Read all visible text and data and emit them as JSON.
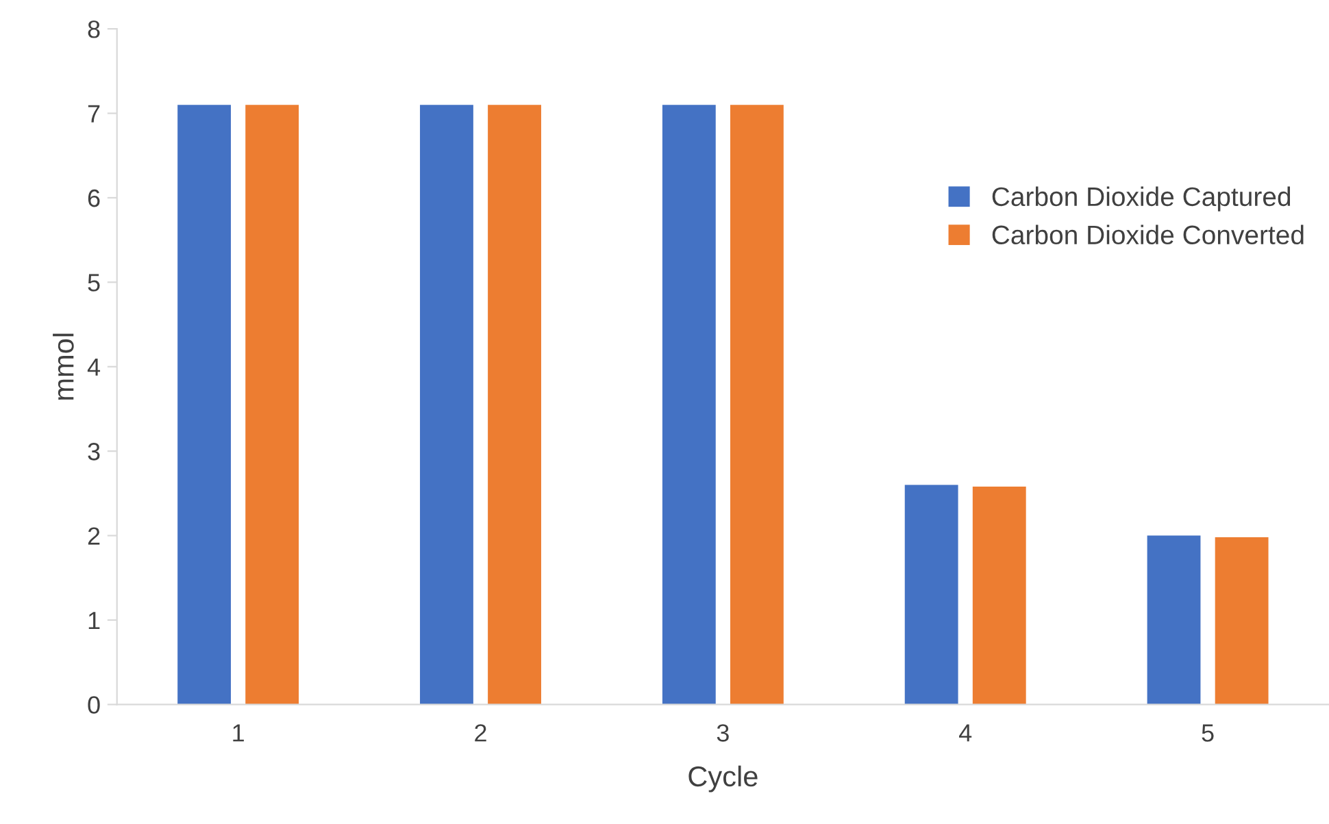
{
  "chart_data": {
    "type": "bar",
    "xlabel": "Cycle",
    "ylabel": "mmol",
    "categories": [
      "1",
      "2",
      "3",
      "4",
      "5"
    ],
    "series": [
      {
        "name": "Carbon Dioxide Captured",
        "color": "#4472c4",
        "values": [
          7.1,
          7.1,
          7.1,
          2.6,
          2.0
        ]
      },
      {
        "name": "Carbon Dioxide Converted",
        "color": "#ed7d31",
        "values": [
          7.1,
          7.1,
          7.1,
          2.58,
          1.98
        ]
      }
    ],
    "ylim": [
      0,
      8
    ],
    "yticks": [
      0,
      1,
      2,
      3,
      4,
      5,
      6,
      7,
      8
    ],
    "grid": false,
    "legend": "right"
  }
}
